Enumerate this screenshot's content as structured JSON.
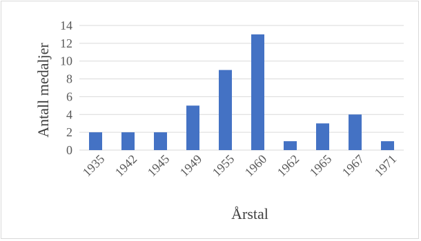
{
  "chart_data": {
    "type": "bar",
    "categories": [
      "1935",
      "1942",
      "1945",
      "1949",
      "1955",
      "1960",
      "1962",
      "1965",
      "1967",
      "1971"
    ],
    "series": [
      {
        "values": [
          2,
          2,
          2,
          5,
          9,
          13,
          1,
          3,
          4,
          1
        ]
      }
    ],
    "title": "",
    "xlabel": "Årstal",
    "ylabel": "Antall medaljer",
    "ylim": [
      0,
      14
    ],
    "yticks": [
      0,
      2,
      4,
      6,
      8,
      10,
      12,
      14
    ],
    "grid": true,
    "legend": "none",
    "bar_color": "#4472c4",
    "grid_color": "#d9d9d9"
  }
}
